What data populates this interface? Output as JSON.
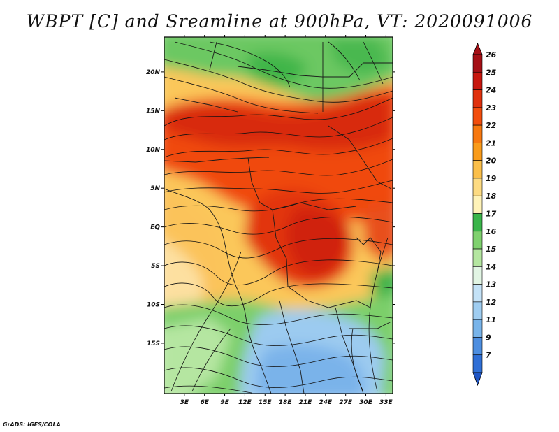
{
  "title": "WBPT [C] and Sreamline at 900hPa, VT: 2020091006",
  "credit": "GrADS: IGES/COLA",
  "map": {
    "lon_range": [
      0,
      34
    ],
    "lat_range": [
      -21.5,
      24.5
    ],
    "lon_ticks": [
      {
        "value": 3,
        "label": "3E"
      },
      {
        "value": 6,
        "label": "6E"
      },
      {
        "value": 9,
        "label": "9E"
      },
      {
        "value": 12,
        "label": "12E"
      },
      {
        "value": 15,
        "label": "15E"
      },
      {
        "value": 18,
        "label": "18E"
      },
      {
        "value": 21,
        "label": "21E"
      },
      {
        "value": 24,
        "label": "24E"
      },
      {
        "value": 27,
        "label": "27E"
      },
      {
        "value": 30,
        "label": "30E"
      },
      {
        "value": 33,
        "label": "33E"
      }
    ],
    "lat_ticks": [
      {
        "value": 20,
        "label": "20N"
      },
      {
        "value": 15,
        "label": "15N"
      },
      {
        "value": 10,
        "label": "10N"
      },
      {
        "value": 5,
        "label": "5N"
      },
      {
        "value": 0,
        "label": "EQ"
      },
      {
        "value": -5,
        "label": "5S"
      },
      {
        "value": -10,
        "label": "10S"
      },
      {
        "value": -15,
        "label": "15S"
      }
    ]
  },
  "colorbar": {
    "levels": [
      {
        "label": "26",
        "color": "#a50f15"
      },
      {
        "label": "25",
        "color": "#c8170e"
      },
      {
        "label": "24",
        "color": "#e0300c"
      },
      {
        "label": "23",
        "color": "#f24d0c"
      },
      {
        "label": "22",
        "color": "#f7780f"
      },
      {
        "label": "21",
        "color": "#f99b1a"
      },
      {
        "label": "20",
        "color": "#fbbf4a"
      },
      {
        "label": "19",
        "color": "#fddb82"
      },
      {
        "label": "18",
        "color": "#fff3b8"
      },
      {
        "label": "17",
        "color": "#3ab54a"
      },
      {
        "label": "16",
        "color": "#7fd16e"
      },
      {
        "label": "15",
        "color": "#b4e6a0"
      },
      {
        "label": "14",
        "color": "#e2f5e4"
      },
      {
        "label": "13",
        "color": "#c4e2f7"
      },
      {
        "label": "12",
        "color": "#9fcdf1"
      },
      {
        "label": "11",
        "color": "#78b4ea"
      },
      {
        "label": "9",
        "color": "#4d8ee0"
      },
      {
        "label": "7",
        "color": "#2f6fd6"
      }
    ],
    "top_arrow_color": "#a50f15",
    "bottom_arrow_color": "#1f55c4"
  }
}
